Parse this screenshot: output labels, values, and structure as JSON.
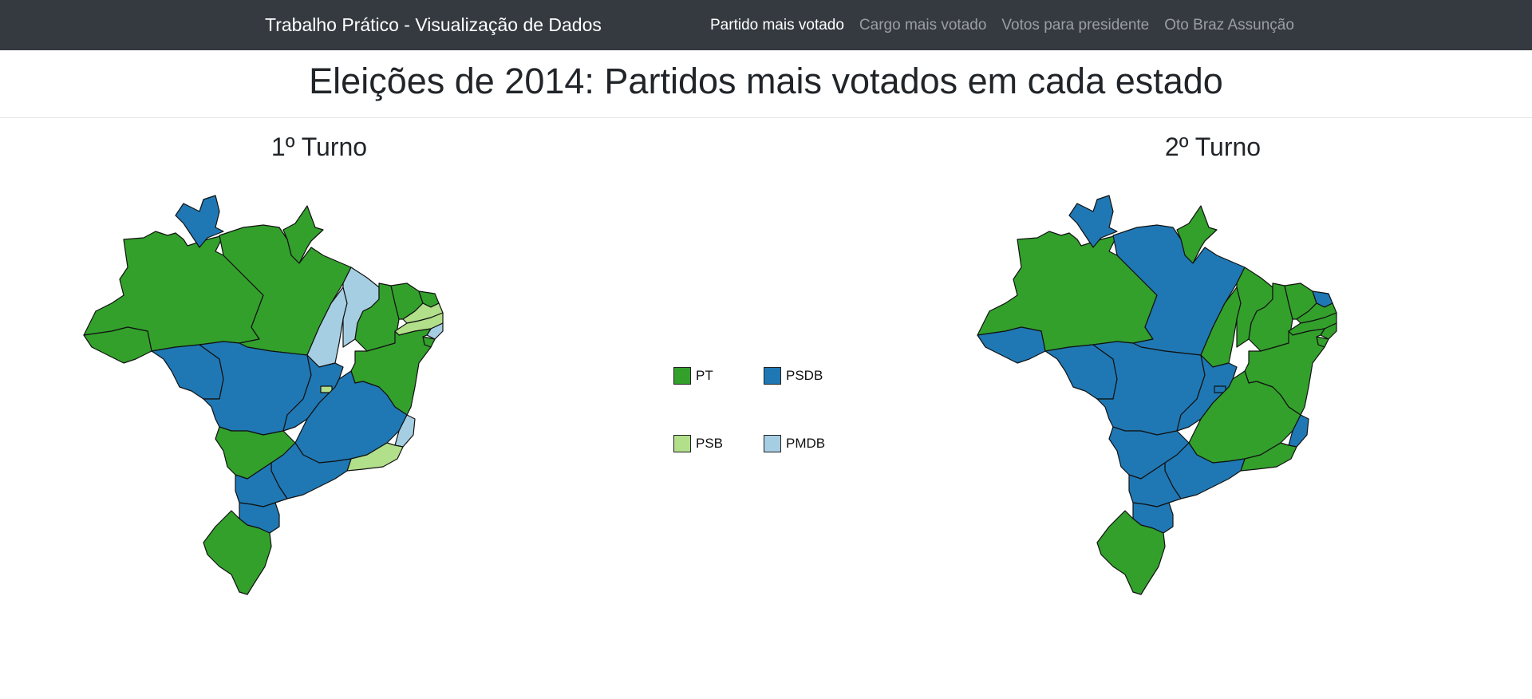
{
  "navbar": {
    "brand": "Trabalho Prático - Visualização de Dados",
    "links": [
      {
        "label": "Partido mais votado",
        "active": true
      },
      {
        "label": "Cargo mais votado",
        "active": false
      },
      {
        "label": "Votos para presidente",
        "active": false
      },
      {
        "label": "Oto Braz Assunção",
        "active": false
      }
    ]
  },
  "page": {
    "title": "Eleições de 2014: Partidos mais votados em cada estado"
  },
  "maps": [
    {
      "title": "1º Turno"
    },
    {
      "title": "2º Turno"
    }
  ],
  "legend": [
    {
      "party": "PT",
      "color": "#33a02c"
    },
    {
      "party": "PSDB",
      "color": "#1f78b4"
    },
    {
      "party": "PSB",
      "color": "#b2df8a"
    },
    {
      "party": "PMDB",
      "color": "#a6cee3"
    }
  ],
  "states": {
    "turn1": {
      "AM": "PT",
      "RR": "PSDB",
      "AP": "PT",
      "PA": "PT",
      "AC": "PT",
      "RO": "PSDB",
      "MT": "PSDB",
      "TO": "PMDB",
      "MA": "PMDB",
      "PI": "PT",
      "CE": "PT",
      "RN": "PT",
      "PB": "PSB",
      "PE": "PSB",
      "AL": "PMDB",
      "SE": "PT",
      "BA": "PT",
      "GO": "PSDB",
      "DF": "PSB",
      "MG": "PSDB",
      "ES": "PMDB",
      "RJ": "PSB",
      "MS": "PT",
      "SP": "PSDB",
      "PR": "PSDB",
      "SC": "PSDB",
      "RS": "PT"
    },
    "turn2": {
      "AM": "PT",
      "RR": "PSDB",
      "AP": "PT",
      "PA": "PSDB",
      "AC": "PSDB",
      "RO": "PSDB",
      "MT": "PSDB",
      "TO": "PT",
      "MA": "PT",
      "PI": "PT",
      "CE": "PT",
      "RN": "PSDB",
      "PB": "PT",
      "PE": "PT",
      "AL": "PT",
      "SE": "PT",
      "BA": "PT",
      "GO": "PSDB",
      "DF": "PSDB",
      "MG": "PT",
      "ES": "PSDB",
      "RJ": "PT",
      "MS": "PSDB",
      "SP": "PSDB",
      "PR": "PSDB",
      "SC": "PSDB",
      "RS": "PT"
    }
  }
}
